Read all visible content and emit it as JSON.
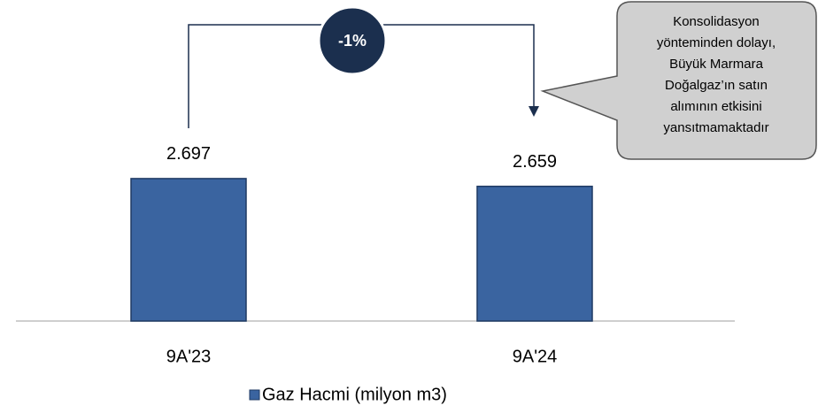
{
  "chart_data": {
    "type": "bar",
    "categories": [
      "9A'23",
      "9A'24"
    ],
    "series": [
      {
        "name": "Gaz Hacmi (milyon m3)",
        "color": "#3a64a0",
        "values": [
          2697,
          2659
        ],
        "value_labels": [
          "2.697",
          "2.659"
        ]
      }
    ],
    "ylim": [
      2000,
      2900
    ],
    "legend": "bottom",
    "annotations": {
      "change": "-1%",
      "note": [
        "Konsolidasyon",
        "yönteminden dolayı,",
        "Büyük Marmara",
        "Doğalgaz’ın satın",
        "alımının etkisini",
        "yansıtmamaktadır"
      ]
    }
  }
}
